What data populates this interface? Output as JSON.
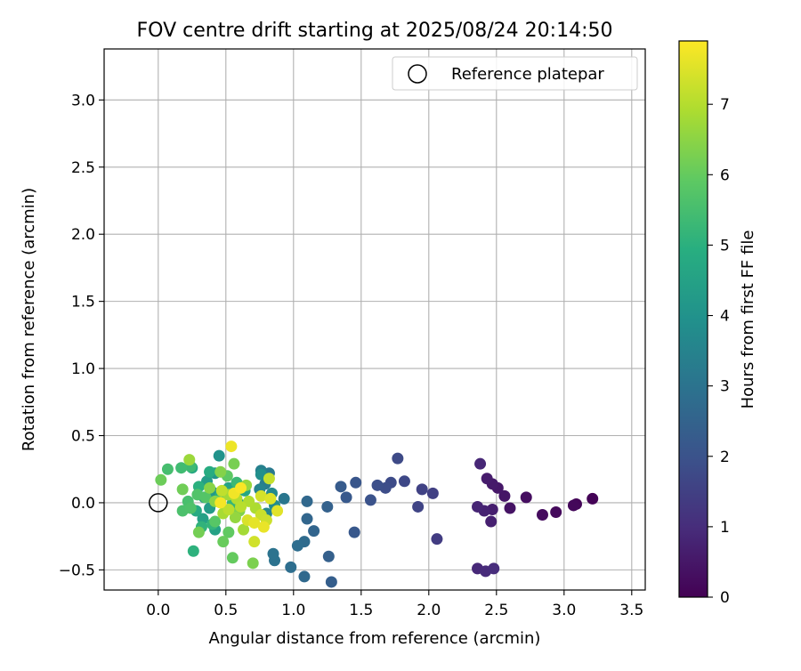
{
  "chart_data": {
    "type": "scatter",
    "title": "FOV centre drift starting at 2025/08/24 20:14:50",
    "xlabel": "Angular distance from reference (arcmin)",
    "ylabel": "Rotation from reference (arcmin)",
    "xlim": [
      -0.4,
      3.6
    ],
    "ylim": [
      -0.65,
      3.38
    ],
    "xticks": [
      0.0,
      0.5,
      1.0,
      1.5,
      2.0,
      2.5,
      3.0,
      3.5
    ],
    "xtick_labels": [
      "0.0",
      "0.5",
      "1.0",
      "1.5",
      "2.0",
      "2.5",
      "3.0",
      "3.5"
    ],
    "yticks": [
      -0.5,
      0.0,
      0.5,
      1.0,
      1.5,
      2.0,
      2.5,
      3.0
    ],
    "ytick_labels": [
      "−0.5",
      "0.0",
      "0.5",
      "1.0",
      "1.5",
      "2.0",
      "2.5",
      "3.0"
    ],
    "grid": true,
    "colormap": "viridis",
    "legend": {
      "placement": "top-right",
      "label": "Reference platepar"
    },
    "reference": {
      "x": 0.0,
      "y": 0.0
    },
    "colorbar": {
      "label": "Hours from first FF file",
      "range": [
        0,
        7.9
      ],
      "ticks": [
        0,
        1,
        2,
        3,
        4,
        5,
        6,
        7
      ],
      "tick_labels": [
        "0",
        "1",
        "2",
        "3",
        "4",
        "5",
        "6",
        "7"
      ]
    },
    "points": [
      {
        "x": 3.21,
        "y": 0.03,
        "h": 0.05
      },
      {
        "x": 3.09,
        "y": -0.01,
        "h": 0.1
      },
      {
        "x": 3.07,
        "y": -0.02,
        "h": 0.15
      },
      {
        "x": 2.94,
        "y": -0.07,
        "h": 0.2
      },
      {
        "x": 2.84,
        "y": -0.09,
        "h": 0.25
      },
      {
        "x": 2.72,
        "y": 0.04,
        "h": 0.3
      },
      {
        "x": 2.6,
        "y": -0.04,
        "h": 0.4
      },
      {
        "x": 2.56,
        "y": 0.05,
        "h": 0.45
      },
      {
        "x": 2.51,
        "y": 0.11,
        "h": 0.5
      },
      {
        "x": 2.47,
        "y": 0.14,
        "h": 0.55
      },
      {
        "x": 2.43,
        "y": 0.18,
        "h": 0.6
      },
      {
        "x": 2.47,
        "y": -0.05,
        "h": 0.65
      },
      {
        "x": 2.46,
        "y": -0.14,
        "h": 0.7
      },
      {
        "x": 2.41,
        "y": -0.06,
        "h": 0.75
      },
      {
        "x": 2.36,
        "y": -0.03,
        "h": 0.8
      },
      {
        "x": 2.38,
        "y": 0.29,
        "h": 0.85
      },
      {
        "x": 2.36,
        "y": -0.49,
        "h": 0.9
      },
      {
        "x": 2.42,
        "y": -0.51,
        "h": 0.95
      },
      {
        "x": 2.48,
        "y": -0.49,
        "h": 1.0
      },
      {
        "x": 2.06,
        "y": -0.27,
        "h": 1.4
      },
      {
        "x": 2.03,
        "y": 0.07,
        "h": 1.5
      },
      {
        "x": 1.95,
        "y": 0.1,
        "h": 1.55
      },
      {
        "x": 1.92,
        "y": -0.03,
        "h": 1.6
      },
      {
        "x": 1.82,
        "y": 0.16,
        "h": 1.7
      },
      {
        "x": 1.77,
        "y": 0.33,
        "h": 1.75
      },
      {
        "x": 1.72,
        "y": 0.15,
        "h": 1.8
      },
      {
        "x": 1.68,
        "y": 0.11,
        "h": 1.85
      },
      {
        "x": 1.62,
        "y": 0.13,
        "h": 1.9
      },
      {
        "x": 1.57,
        "y": 0.02,
        "h": 2.0
      },
      {
        "x": 1.46,
        "y": 0.15,
        "h": 2.1
      },
      {
        "x": 1.45,
        "y": -0.22,
        "h": 2.15
      },
      {
        "x": 1.39,
        "y": 0.04,
        "h": 2.2
      },
      {
        "x": 1.35,
        "y": 0.12,
        "h": 2.25
      },
      {
        "x": 1.28,
        "y": -0.59,
        "h": 2.35
      },
      {
        "x": 1.26,
        "y": -0.4,
        "h": 2.4
      },
      {
        "x": 1.25,
        "y": -0.03,
        "h": 2.45
      },
      {
        "x": 1.15,
        "y": -0.21,
        "h": 2.55
      },
      {
        "x": 1.1,
        "y": -0.12,
        "h": 2.6
      },
      {
        "x": 1.1,
        "y": 0.01,
        "h": 2.65
      },
      {
        "x": 1.08,
        "y": -0.55,
        "h": 2.7
      },
      {
        "x": 1.08,
        "y": -0.29,
        "h": 2.75
      },
      {
        "x": 1.03,
        "y": -0.32,
        "h": 2.8
      },
      {
        "x": 0.98,
        "y": -0.48,
        "h": 2.85
      },
      {
        "x": 0.86,
        "y": -0.43,
        "h": 2.95
      },
      {
        "x": 0.85,
        "y": -0.38,
        "h": 3.0
      },
      {
        "x": 0.93,
        "y": 0.03,
        "h": 3.1
      },
      {
        "x": 0.82,
        "y": 0.22,
        "h": 3.2
      },
      {
        "x": 0.79,
        "y": 0.14,
        "h": 3.3
      },
      {
        "x": 0.76,
        "y": 0.24,
        "h": 3.4
      },
      {
        "x": 0.75,
        "y": 0.1,
        "h": 3.5
      },
      {
        "x": 0.8,
        "y": -0.08,
        "h": 3.6
      },
      {
        "x": 0.84,
        "y": 0.07,
        "h": 3.7
      },
      {
        "x": 0.86,
        "y": -0.02,
        "h": 3.8
      },
      {
        "x": 0.76,
        "y": 0.21,
        "h": 3.9
      },
      {
        "x": 0.45,
        "y": 0.35,
        "h": 4.0
      },
      {
        "x": 0.42,
        "y": 0.22,
        "h": 4.1
      },
      {
        "x": 0.4,
        "y": 0.08,
        "h": 4.2
      },
      {
        "x": 0.38,
        "y": -0.04,
        "h": 4.3
      },
      {
        "x": 0.36,
        "y": 0.16,
        "h": 4.35
      },
      {
        "x": 0.34,
        "y": 0.04,
        "h": 4.4
      },
      {
        "x": 0.33,
        "y": -0.12,
        "h": 4.45
      },
      {
        "x": 0.42,
        "y": -0.2,
        "h": 4.5
      },
      {
        "x": 0.52,
        "y": 0.11,
        "h": 4.55
      },
      {
        "x": 0.6,
        "y": -0.01,
        "h": 4.6
      },
      {
        "x": 0.64,
        "y": 0.09,
        "h": 4.65
      },
      {
        "x": 0.25,
        "y": 0.26,
        "h": 4.7
      },
      {
        "x": 0.28,
        "y": -0.06,
        "h": 4.8
      },
      {
        "x": 0.38,
        "y": 0.23,
        "h": 4.85
      },
      {
        "x": 0.46,
        "y": 0.05,
        "h": 4.9
      },
      {
        "x": 0.3,
        "y": 0.12,
        "h": 5.0
      },
      {
        "x": 0.26,
        "y": -0.36,
        "h": 5.05
      },
      {
        "x": 0.32,
        "y": -0.18,
        "h": 5.1
      },
      {
        "x": 0.4,
        "y": -0.16,
        "h": 5.15
      },
      {
        "x": 0.55,
        "y": 0.0,
        "h": 5.2
      },
      {
        "x": 0.58,
        "y": 0.15,
        "h": 5.3
      },
      {
        "x": 0.24,
        "y": 0.27,
        "h": 5.35
      },
      {
        "x": 0.17,
        "y": 0.26,
        "h": 5.4
      },
      {
        "x": 0.07,
        "y": 0.25,
        "h": 5.5
      },
      {
        "x": 0.22,
        "y": 0.01,
        "h": 5.55
      },
      {
        "x": 0.18,
        "y": -0.06,
        "h": 5.6
      },
      {
        "x": 0.24,
        "y": -0.04,
        "h": 5.65
      },
      {
        "x": 0.29,
        "y": 0.06,
        "h": 5.7
      },
      {
        "x": 0.35,
        "y": 0.04,
        "h": 5.75
      },
      {
        "x": 0.42,
        "y": -0.14,
        "h": 5.8
      },
      {
        "x": 0.48,
        "y": 0.06,
        "h": 5.85
      },
      {
        "x": 0.51,
        "y": 0.2,
        "h": 5.9
      },
      {
        "x": 0.52,
        "y": -0.22,
        "h": 5.95
      },
      {
        "x": 0.55,
        "y": -0.41,
        "h": 6.0
      },
      {
        "x": 0.48,
        "y": -0.29,
        "h": 6.05
      },
      {
        "x": 0.02,
        "y": 0.17,
        "h": 6.1
      },
      {
        "x": 0.18,
        "y": 0.1,
        "h": 6.15
      },
      {
        "x": 0.3,
        "y": -0.22,
        "h": 6.2
      },
      {
        "x": 0.56,
        "y": 0.29,
        "h": 6.25
      },
      {
        "x": 0.7,
        "y": -0.45,
        "h": 6.3
      },
      {
        "x": 0.6,
        "y": -0.06,
        "h": 6.35
      },
      {
        "x": 0.46,
        "y": 0.23,
        "h": 6.4
      },
      {
        "x": 0.38,
        "y": 0.11,
        "h": 6.45
      },
      {
        "x": 0.42,
        "y": 0.01,
        "h": 6.5
      },
      {
        "x": 0.57,
        "y": -0.11,
        "h": 6.6
      },
      {
        "x": 0.65,
        "y": 0.13,
        "h": 6.65
      },
      {
        "x": 0.23,
        "y": 0.32,
        "h": 6.7
      },
      {
        "x": 0.52,
        "y": 0.06,
        "h": 6.75
      },
      {
        "x": 0.63,
        "y": -0.2,
        "h": 6.8
      },
      {
        "x": 0.48,
        "y": -0.08,
        "h": 6.85
      },
      {
        "x": 0.72,
        "y": -0.04,
        "h": 6.9
      },
      {
        "x": 0.67,
        "y": 0.01,
        "h": 6.95
      },
      {
        "x": 0.58,
        "y": 0.03,
        "h": 7.0
      },
      {
        "x": 0.61,
        "y": -0.03,
        "h": 7.05
      },
      {
        "x": 0.52,
        "y": -0.05,
        "h": 7.1
      },
      {
        "x": 0.47,
        "y": 0.09,
        "h": 7.15
      },
      {
        "x": 0.82,
        "y": 0.18,
        "h": 7.2
      },
      {
        "x": 0.76,
        "y": -0.09,
        "h": 7.25
      },
      {
        "x": 0.8,
        "y": -0.13,
        "h": 7.3
      },
      {
        "x": 0.71,
        "y": -0.29,
        "h": 7.35
      },
      {
        "x": 0.76,
        "y": 0.05,
        "h": 7.4
      },
      {
        "x": 0.66,
        "y": -0.13,
        "h": 7.45
      },
      {
        "x": 0.83,
        "y": 0.03,
        "h": 7.5
      },
      {
        "x": 0.88,
        "y": -0.06,
        "h": 7.55
      },
      {
        "x": 0.71,
        "y": -0.15,
        "h": 7.6
      },
      {
        "x": 0.78,
        "y": -0.18,
        "h": 7.65
      },
      {
        "x": 0.54,
        "y": 0.42,
        "h": 7.7
      },
      {
        "x": 0.56,
        "y": 0.07,
        "h": 7.75
      },
      {
        "x": 0.46,
        "y": 0.0,
        "h": 7.8
      },
      {
        "x": 0.61,
        "y": 0.11,
        "h": 7.85
      }
    ]
  }
}
